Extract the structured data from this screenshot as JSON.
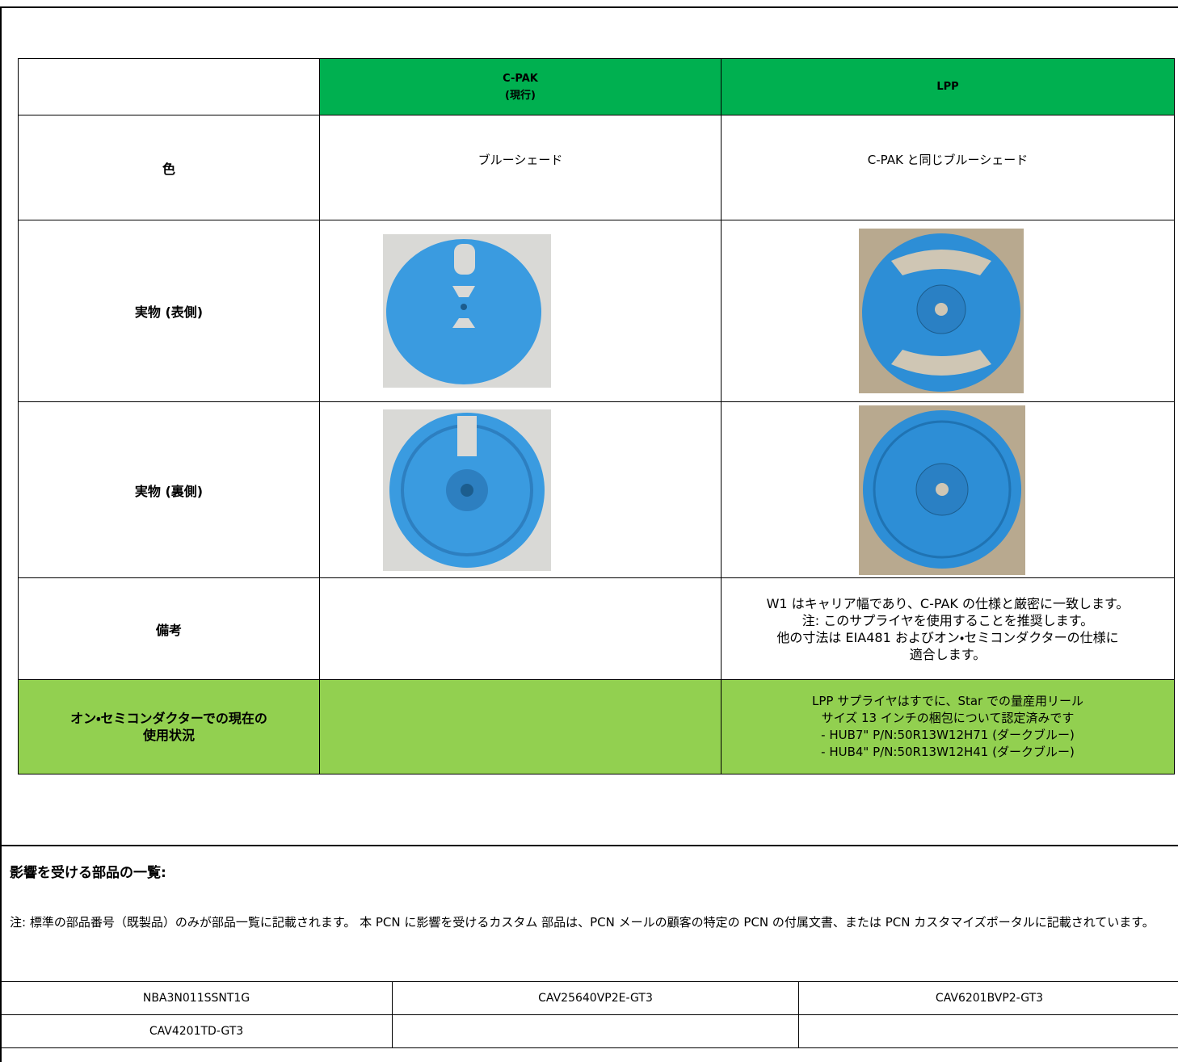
{
  "comparison_table": {
    "columns": [
      {
        "lines": [
          "C-PAK",
          "(現行)"
        ]
      },
      {
        "lines": [
          "LPP"
        ]
      }
    ],
    "color_row": {
      "label": "色",
      "cpak": "ブルーシェード",
      "lpp": "C-PAK と同じブルーシェード"
    },
    "front_row": {
      "label": "実物 (表側)"
    },
    "back_row": {
      "label": "実物 (裏側)"
    },
    "remarks_row": {
      "label": "備考",
      "lpp_lines": [
        "W1 はキャリア幅であり、C-PAK の仕様と厳密に一致します。",
        "注: このサプライヤを使用することを推奨します。",
        "他の寸法は EIA481 およびオン・セミコンダクターの仕様に",
        "適合します。"
      ]
    },
    "usage_row": {
      "label_lines": [
        "オン・セミコンダクターでの現在の",
        "使用状況"
      ],
      "lpp_lines": [
        "LPP サプライヤはすでに、Star での量産用リール",
        "サイズ 13 インチの梱包について認定済みです",
        "- HUB7\" P/N:50R13W12H71 (ダークブルー)",
        "- HUB4\" P/N:50R13W12H41 (ダークブルー)"
      ]
    }
  },
  "parts_section": {
    "heading": "影響を受ける部品の一覧:",
    "note": "注:  標準の部品番号（既製品）のみが部品一覧に記載されます。 本 PCN に影響を受けるカスタム 部品は、PCN メールの顧客の特定の PCN の付属文書、または PCN カスタマイズポータルに記載されています。",
    "rows": [
      [
        "NBA3N011SSNT1G",
        "CAV25640VP2E-GT3",
        "CAV6201BVP2-GT3"
      ],
      [
        "CAV4201TD-GT3"
      ]
    ]
  }
}
